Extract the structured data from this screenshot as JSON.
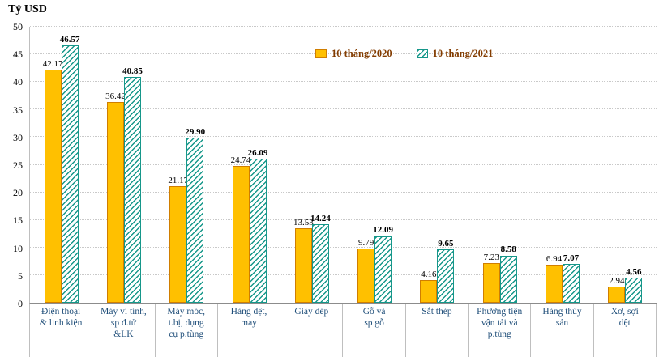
{
  "chart_data": {
    "type": "bar",
    "title": "Tỷ USD",
    "categories": [
      "Điện thoại & linh kiện",
      "Máy vi tính, sp đ.tử &LK",
      "Máy móc, t.bị, dụng cụ p.tùng",
      "Hàng dệt, may",
      "Giày dép",
      "Gỗ và sp gỗ",
      "Sắt thép",
      "Phương tiện vận tải và p.tùng",
      "Hàng thủy sản",
      "Xơ, sợi dệt"
    ],
    "category_lines": [
      "Điện thoại\n& linh kiện",
      "Máy vi tính,\nsp đ.tử\n&LK",
      "Máy móc,\nt.bị, dụng\ncụ p.tùng",
      "Hàng dệt,\nmay",
      "Giày dép",
      "Gỗ và\nsp gỗ",
      "Sắt thép",
      "Phương tiện\nvận tải và\np.tùng",
      "Hàng thủy\nsản",
      "Xơ, sợi\ndệt"
    ],
    "series": [
      {
        "name": "10 tháng/2020",
        "values": [
          42.17,
          36.42,
          21.17,
          24.74,
          13.53,
          9.79,
          4.16,
          7.23,
          6.94,
          2.94
        ],
        "color": "#FFC000",
        "border_color": "#D07E00",
        "pattern": "solid",
        "bold_labels": false
      },
      {
        "name": "10 tháng/2021",
        "values": [
          46.57,
          40.85,
          29.9,
          26.09,
          14.24,
          12.09,
          9.65,
          8.58,
          7.07,
          4.56
        ],
        "color": "#16978A",
        "border_color": "#16978A",
        "pattern": "hatch",
        "bold_labels": true
      }
    ],
    "ylim": [
      0,
      50
    ],
    "ytick_step": 5,
    "grid": true,
    "legend_position": "top-center"
  },
  "colors": {
    "category_label": "#1F4E79",
    "legend_text": "#833C00",
    "value_label": "#000000",
    "gridline": "#C9C9C9"
  }
}
